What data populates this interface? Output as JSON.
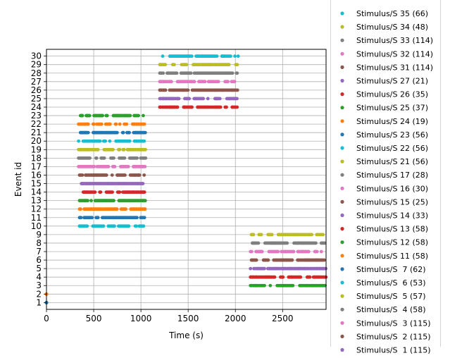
{
  "chart_data": {
    "type": "scatter",
    "xlabel": "Time (s)",
    "ylabel": "Event id",
    "xlim": [
      0,
      2960
    ],
    "ylim": [
      0.2,
      30.8
    ],
    "x_ticks": [
      0,
      500,
      1000,
      1500,
      2000,
      2500
    ],
    "y_ticks": [
      1,
      2,
      3,
      4,
      5,
      6,
      7,
      8,
      9,
      10,
      11,
      12,
      13,
      14,
      15,
      16,
      17,
      18,
      19,
      20,
      21,
      22,
      23,
      24,
      25,
      26,
      27,
      28,
      29,
      30
    ],
    "grid": true,
    "legend_position": "right, outside plot",
    "events": [
      {
        "id": 30,
        "label": "Stimulus/S 35 (66)",
        "count": 66,
        "color": "#17becf",
        "ranges": [
          [
            1230,
            2030
          ]
        ]
      },
      {
        "id": 29,
        "label": "Stimulus/S 34 (48)",
        "count": 48,
        "color": "#bcbd22",
        "ranges": [
          [
            1200,
            2030
          ]
        ]
      },
      {
        "id": 28,
        "label": "Stimulus/S 33 (114)",
        "count": 114,
        "color": "#7f7f7f",
        "ranges": [
          [
            1200,
            2030
          ]
        ]
      },
      {
        "id": 27,
        "label": "Stimulus/S 32 (114)",
        "count": 114,
        "color": "#e377c2",
        "ranges": [
          [
            1200,
            2030
          ]
        ]
      },
      {
        "id": 26,
        "label": "Stimulus/S 31 (114)",
        "count": 114,
        "color": "#8c564b",
        "ranges": [
          [
            1200,
            2030
          ]
        ]
      },
      {
        "id": 25,
        "label": "Stimulus/S 27 (21)",
        "count": 21,
        "color": "#9467bd",
        "ranges": [
          [
            1200,
            2030
          ]
        ]
      },
      {
        "id": 24,
        "label": "Stimulus/S 26 (35)",
        "count": 35,
        "color": "#d62728",
        "ranges": [
          [
            1200,
            2030
          ]
        ]
      },
      {
        "id": 23,
        "label": "Stimulus/S 25 (37)",
        "count": 37,
        "color": "#2ca02c",
        "ranges": [
          [
            360,
            1040
          ]
        ]
      },
      {
        "id": 22,
        "label": "Stimulus/S 24 (19)",
        "count": 19,
        "color": "#ff7f0e",
        "ranges": [
          [
            340,
            1040
          ]
        ]
      },
      {
        "id": 21,
        "label": "Stimulus/S 23 (56)",
        "count": 56,
        "color": "#1f77b4",
        "ranges": [
          [
            360,
            1050
          ]
        ]
      },
      {
        "id": 20,
        "label": "Stimulus/S 22 (56)",
        "count": 56,
        "color": "#17becf",
        "ranges": [
          [
            340,
            1040
          ]
        ]
      },
      {
        "id": 19,
        "label": "Stimulus/S 21 (56)",
        "count": 56,
        "color": "#bcbd22",
        "ranges": [
          [
            340,
            1050
          ]
        ]
      },
      {
        "id": 18,
        "label": "Stimulus/S 17 (28)",
        "count": 28,
        "color": "#7f7f7f",
        "ranges": [
          [
            340,
            1050
          ]
        ]
      },
      {
        "id": 17,
        "label": "Stimulus/S 16 (30)",
        "count": 30,
        "color": "#e377c2",
        "ranges": [
          [
            340,
            1050
          ]
        ]
      },
      {
        "id": 16,
        "label": "Stimulus/S 15 (25)",
        "count": 25,
        "color": "#8c564b",
        "ranges": [
          [
            350,
            1040
          ]
        ]
      },
      {
        "id": 15,
        "label": "Stimulus/S 14 (33)",
        "count": 33,
        "color": "#9467bd",
        "ranges": [
          [
            370,
            1060
          ]
        ]
      },
      {
        "id": 14,
        "label": "Stimulus/S 13 (58)",
        "count": 58,
        "color": "#d62728",
        "ranges": [
          [
            390,
            1040
          ]
        ]
      },
      {
        "id": 13,
        "label": "Stimulus/S 12 (58)",
        "count": 58,
        "color": "#2ca02c",
        "ranges": [
          [
            350,
            1050
          ]
        ]
      },
      {
        "id": 12,
        "label": "Stimulus/S 11 (58)",
        "count": 58,
        "color": "#ff7f0e",
        "ranges": [
          [
            350,
            1050
          ]
        ]
      },
      {
        "id": 11,
        "label": "Stimulus/S  7 (62)",
        "count": 62,
        "color": "#1f77b4",
        "ranges": [
          [
            350,
            1050
          ]
        ]
      },
      {
        "id": 10,
        "label": "Stimulus/S  6 (53)",
        "count": 53,
        "color": "#17becf",
        "ranges": [
          [
            350,
            1050
          ]
        ]
      },
      {
        "id": 9,
        "label": "Stimulus/S  5 (57)",
        "count": 57,
        "color": "#bcbd22",
        "ranges": [
          [
            2170,
            2950
          ]
        ]
      },
      {
        "id": 8,
        "label": "Stimulus/S  4 (58)",
        "count": 58,
        "color": "#7f7f7f",
        "ranges": [
          [
            2180,
            2950
          ]
        ]
      },
      {
        "id": 7,
        "label": "Stimulus/S  3 (115)",
        "count": 115,
        "color": "#e377c2",
        "ranges": [
          [
            2160,
            2940
          ]
        ]
      },
      {
        "id": 6,
        "label": "Stimulus/S  2 (115)",
        "count": 115,
        "color": "#8c564b",
        "ranges": [
          [
            2170,
            2950
          ]
        ]
      },
      {
        "id": 5,
        "label": "Stimulus/S  1 (115)",
        "count": 115,
        "color": "#9467bd",
        "ranges": [
          [
            2160,
            2960
          ]
        ]
      },
      {
        "id": 4,
        "label": "",
        "count": 115,
        "color": "#d62728",
        "ranges": [
          [
            2160,
            2960
          ]
        ]
      },
      {
        "id": 3,
        "label": "",
        "count": 115,
        "color": "#2ca02c",
        "ranges": [
          [
            2160,
            2960
          ]
        ]
      },
      {
        "id": 2,
        "label": "",
        "count": 1,
        "color": "#ff7f0e",
        "ranges": [
          [
            0,
            0
          ]
        ]
      },
      {
        "id": 1,
        "label": "",
        "count": 1,
        "color": "#1f77b4",
        "ranges": [
          [
            0,
            0
          ]
        ]
      }
    ]
  }
}
